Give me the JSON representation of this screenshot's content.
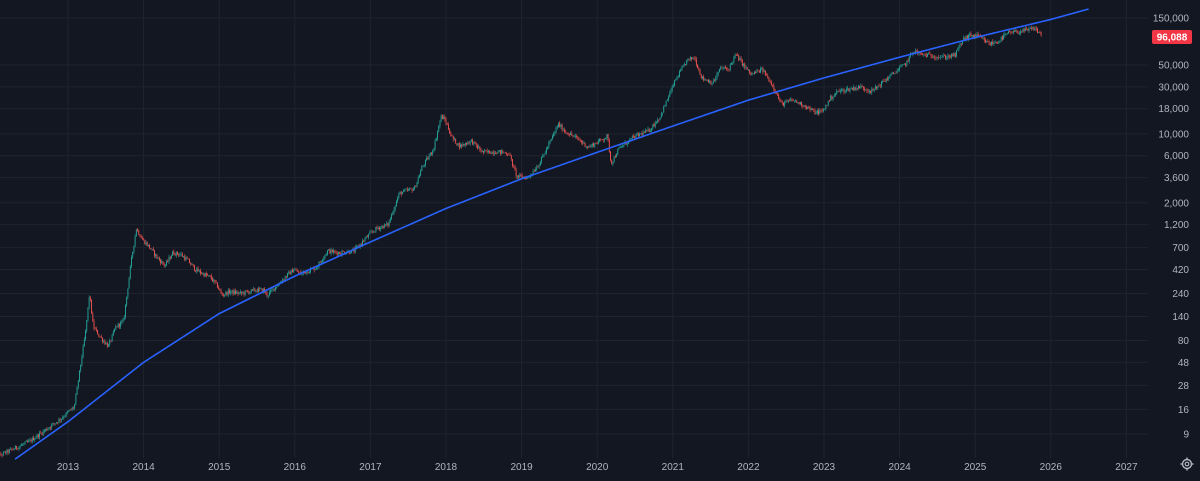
{
  "chart_data": {
    "type": "candlestick",
    "scale": "log",
    "grid": true,
    "colors": {
      "background": "#131722",
      "grid": "#1f232e",
      "up": "#26a69a",
      "down": "#ef5350",
      "trendline": "#2962ff",
      "price_label_bg": "#f23645",
      "axis_text": "#b2b5be"
    },
    "x_range": [
      2012.0,
      2027.7
    ],
    "y_range": [
      5,
      200000
    ],
    "x_ticks": [
      {
        "label": "2013",
        "value": 2013
      },
      {
        "label": "2014",
        "value": 2014
      },
      {
        "label": "2015",
        "value": 2015
      },
      {
        "label": "2016",
        "value": 2016
      },
      {
        "label": "2017",
        "value": 2017
      },
      {
        "label": "2018",
        "value": 2018
      },
      {
        "label": "2019",
        "value": 2019
      },
      {
        "label": "2020",
        "value": 2020
      },
      {
        "label": "2021",
        "value": 2021
      },
      {
        "label": "2022",
        "value": 2022
      },
      {
        "label": "2023",
        "value": 2023
      },
      {
        "label": "2024",
        "value": 2024
      },
      {
        "label": "2025",
        "value": 2025
      },
      {
        "label": "2026",
        "value": 2026
      },
      {
        "label": "2027",
        "value": 2027
      }
    ],
    "y_ticks": [
      {
        "label": "150,000",
        "value": 150000
      },
      {
        "label": "50,000",
        "value": 50000
      },
      {
        "label": "30,000",
        "value": 30000
      },
      {
        "label": "18,000",
        "value": 18000
      },
      {
        "label": "10,000",
        "value": 10000
      },
      {
        "label": "6,000",
        "value": 6000
      },
      {
        "label": "3,600",
        "value": 3600
      },
      {
        "label": "2,000",
        "value": 2000
      },
      {
        "label": "1,200",
        "value": 1200
      },
      {
        "label": "700",
        "value": 700
      },
      {
        "label": "420",
        "value": 420
      },
      {
        "label": "240",
        "value": 240
      },
      {
        "label": "140",
        "value": 140
      },
      {
        "label": "80",
        "value": 80
      },
      {
        "label": "48",
        "value": 48
      },
      {
        "label": "28",
        "value": 28
      },
      {
        "label": "16",
        "value": 16
      },
      {
        "label": "9",
        "value": 9
      }
    ],
    "price_path": [
      [
        2012.0,
        5.0
      ],
      [
        2012.5,
        7.5
      ],
      [
        2012.9,
        12.5
      ],
      [
        2013.1,
        17
      ],
      [
        2013.25,
        100
      ],
      [
        2013.3,
        240
      ],
      [
        2013.35,
        110
      ],
      [
        2013.45,
        85
      ],
      [
        2013.55,
        70
      ],
      [
        2013.65,
        110
      ],
      [
        2013.75,
        125
      ],
      [
        2013.85,
        500
      ],
      [
        2013.92,
        1100
      ],
      [
        2014.0,
        850
      ],
      [
        2014.1,
        700
      ],
      [
        2014.2,
        550
      ],
      [
        2014.3,
        460
      ],
      [
        2014.4,
        620
      ],
      [
        2014.5,
        600
      ],
      [
        2014.6,
        520
      ],
      [
        2014.7,
        420
      ],
      [
        2014.8,
        380
      ],
      [
        2014.9,
        350
      ],
      [
        2015.0,
        280
      ],
      [
        2015.05,
        230
      ],
      [
        2015.15,
        250
      ],
      [
        2015.3,
        240
      ],
      [
        2015.5,
        260
      ],
      [
        2015.6,
        260
      ],
      [
        2015.65,
        230
      ],
      [
        2015.8,
        300
      ],
      [
        2015.9,
        360
      ],
      [
        2016.0,
        420
      ],
      [
        2016.1,
        380
      ],
      [
        2016.3,
        440
      ],
      [
        2016.45,
        650
      ],
      [
        2016.6,
        620
      ],
      [
        2016.8,
        650
      ],
      [
        2017.0,
        950
      ],
      [
        2017.1,
        1100
      ],
      [
        2017.25,
        1200
      ],
      [
        2017.4,
        2500
      ],
      [
        2017.6,
        2800
      ],
      [
        2017.7,
        4600
      ],
      [
        2017.85,
        7000
      ],
      [
        2017.95,
        15000
      ],
      [
        2018.0,
        14000
      ],
      [
        2018.1,
        9000
      ],
      [
        2018.2,
        7500
      ],
      [
        2018.35,
        8500
      ],
      [
        2018.5,
        6500
      ],
      [
        2018.7,
        6600
      ],
      [
        2018.85,
        6300
      ],
      [
        2018.95,
        3700
      ],
      [
        2019.1,
        3600
      ],
      [
        2019.25,
        5000
      ],
      [
        2019.4,
        8500
      ],
      [
        2019.5,
        12500
      ],
      [
        2019.6,
        10500
      ],
      [
        2019.75,
        9000
      ],
      [
        2019.9,
        7300
      ],
      [
        2020.05,
        8500
      ],
      [
        2020.15,
        9500
      ],
      [
        2020.2,
        5000
      ],
      [
        2020.3,
        7000
      ],
      [
        2020.5,
        9300
      ],
      [
        2020.7,
        10800
      ],
      [
        2020.85,
        15000
      ],
      [
        2020.95,
        23000
      ],
      [
        2021.05,
        35000
      ],
      [
        2021.2,
        55000
      ],
      [
        2021.3,
        60000
      ],
      [
        2021.4,
        37000
      ],
      [
        2021.55,
        33000
      ],
      [
        2021.65,
        47000
      ],
      [
        2021.75,
        45000
      ],
      [
        2021.85,
        64000
      ],
      [
        2021.95,
        50000
      ],
      [
        2022.05,
        40000
      ],
      [
        2022.2,
        45000
      ],
      [
        2022.35,
        30000
      ],
      [
        2022.45,
        20000
      ],
      [
        2022.6,
        22000
      ],
      [
        2022.75,
        19500
      ],
      [
        2022.9,
        16500
      ],
      [
        2023.0,
        17000
      ],
      [
        2023.1,
        23000
      ],
      [
        2023.2,
        27000
      ],
      [
        2023.35,
        28500
      ],
      [
        2023.5,
        30000
      ],
      [
        2023.65,
        27000
      ],
      [
        2023.8,
        34000
      ],
      [
        2023.95,
        42000
      ],
      [
        2024.1,
        52000
      ],
      [
        2024.2,
        70000
      ],
      [
        2024.3,
        64000
      ],
      [
        2024.45,
        62000
      ],
      [
        2024.6,
        60000
      ],
      [
        2024.75,
        63000
      ],
      [
        2024.85,
        90000
      ],
      [
        2024.95,
        100000
      ],
      [
        2025.05,
        98000
      ],
      [
        2025.2,
        82000
      ],
      [
        2025.3,
        85000
      ],
      [
        2025.45,
        105000
      ],
      [
        2025.55,
        108000
      ],
      [
        2025.7,
        112000
      ],
      [
        2025.8,
        118000
      ],
      [
        2025.9,
        100000
      ],
      [
        2025.88,
        96088
      ]
    ],
    "trendline": [
      [
        2012.3,
        5.0
      ],
      [
        2013.0,
        12
      ],
      [
        2014.0,
        48
      ],
      [
        2015.0,
        150
      ],
      [
        2016.0,
        360
      ],
      [
        2017.0,
        800
      ],
      [
        2018.0,
        1750
      ],
      [
        2019.0,
        3500
      ],
      [
        2020.0,
        6500
      ],
      [
        2021.0,
        12000
      ],
      [
        2022.0,
        22000
      ],
      [
        2023.0,
        37000
      ],
      [
        2024.0,
        60000
      ],
      [
        2025.0,
        95000
      ],
      [
        2026.0,
        145000
      ],
      [
        2026.5,
        185000
      ]
    ],
    "last_price": {
      "label": "96,088",
      "value": 96088
    }
  }
}
